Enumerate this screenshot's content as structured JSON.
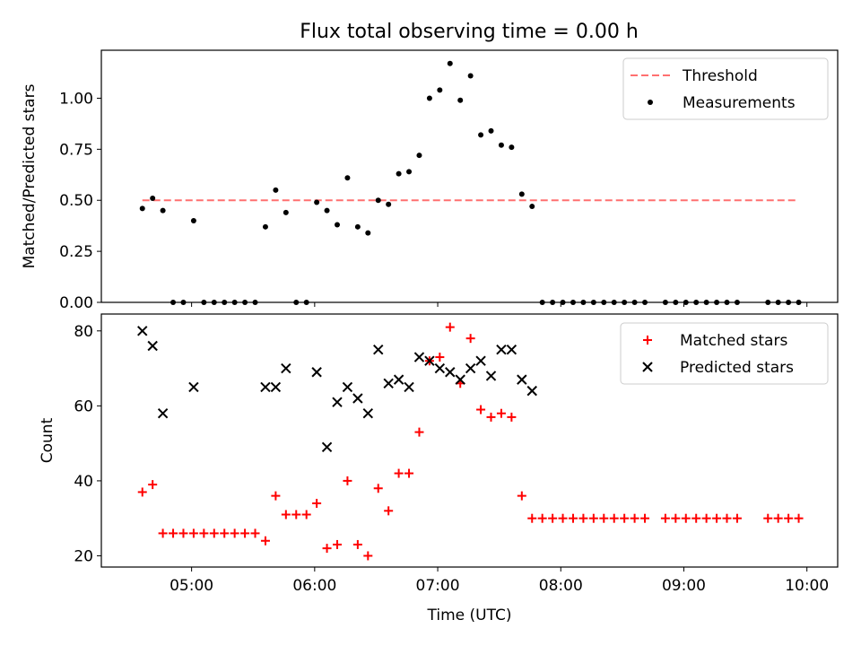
{
  "title": "Flux total observing time = 0.00 h",
  "chart_data": [
    {
      "type": "scatter",
      "ylabel": "Matched/Predicted stars",
      "ylim": [
        0,
        1.235
      ],
      "yticks": [
        "0.00",
        "0.25",
        "0.50",
        "0.75",
        "1.00"
      ],
      "xlim": [
        "04:16",
        "10:15"
      ],
      "grid": false,
      "legend_position": "top-right",
      "threshold": {
        "name": "Threshold",
        "y": 0.5,
        "x_start": "04:36",
        "x_end": "09:56",
        "color": "#ff7070"
      },
      "series": [
        {
          "name": "Measurements",
          "color": "#000000",
          "marker": "dot",
          "x": [
            "04:36",
            "04:41",
            "04:46",
            "04:51",
            "04:56",
            "05:01",
            "05:06",
            "05:11",
            "05:16",
            "05:21",
            "05:26",
            "05:31",
            "05:36",
            "05:41",
            "05:46",
            "05:51",
            "05:56",
            "06:01",
            "06:06",
            "06:11",
            "06:16",
            "06:21",
            "06:26",
            "06:31",
            "06:36",
            "06:41",
            "06:46",
            "06:51",
            "06:56",
            "07:01",
            "07:06",
            "07:11",
            "07:16",
            "07:21",
            "07:26",
            "07:31",
            "07:36",
            "07:41",
            "07:46",
            "07:51",
            "07:56",
            "08:01",
            "08:06",
            "08:11",
            "08:16",
            "08:21",
            "08:26",
            "08:31",
            "08:36",
            "08:41",
            "08:51",
            "08:56",
            "09:01",
            "09:06",
            "09:11",
            "09:16",
            "09:21",
            "09:26",
            "09:41",
            "09:46",
            "09:51",
            "09:56"
          ],
          "y": [
            0.46,
            0.51,
            0.45,
            0,
            0,
            0.4,
            0,
            0,
            0,
            0,
            0,
            0,
            0.37,
            0.55,
            0.44,
            0,
            0,
            0.49,
            0.45,
            0.38,
            0.61,
            0.37,
            0.34,
            0.5,
            0.48,
            0.63,
            0.64,
            0.72,
            1.0,
            1.04,
            1.17,
            0.99,
            1.11,
            0.82,
            0.84,
            0.77,
            0.76,
            0.53,
            0.47,
            0,
            0,
            0,
            0,
            0,
            0,
            0,
            0,
            0,
            0,
            0,
            0,
            0,
            0,
            0,
            0,
            0,
            0,
            0,
            0,
            0,
            0,
            0
          ]
        }
      ]
    },
    {
      "type": "scatter",
      "xlabel": "Time (UTC)",
      "ylabel": "Count",
      "ylim": [
        17,
        84.5
      ],
      "yticks": [
        "20",
        "40",
        "60",
        "80"
      ],
      "xlim": [
        "04:16",
        "10:15"
      ],
      "xticks": [
        "05:00",
        "06:00",
        "07:00",
        "08:00",
        "09:00",
        "10:00"
      ],
      "grid": false,
      "legend_position": "top-right",
      "series": [
        {
          "name": "Matched stars",
          "color": "#ff0000",
          "marker": "plus",
          "x": [
            "04:36",
            "04:41",
            "04:46",
            "04:51",
            "04:56",
            "05:01",
            "05:06",
            "05:11",
            "05:16",
            "05:21",
            "05:26",
            "05:31",
            "05:36",
            "05:41",
            "05:46",
            "05:51",
            "05:56",
            "06:01",
            "06:06",
            "06:11",
            "06:16",
            "06:21",
            "06:26",
            "06:31",
            "06:36",
            "06:41",
            "06:46",
            "06:51",
            "06:56",
            "07:01",
            "07:06",
            "07:11",
            "07:16",
            "07:21",
            "07:26",
            "07:31",
            "07:36",
            "07:41",
            "07:46",
            "07:51",
            "07:56",
            "08:01",
            "08:06",
            "08:11",
            "08:16",
            "08:21",
            "08:26",
            "08:31",
            "08:36",
            "08:41",
            "08:51",
            "08:56",
            "09:01",
            "09:06",
            "09:11",
            "09:16",
            "09:21",
            "09:26",
            "09:41",
            "09:46",
            "09:51",
            "09:56"
          ],
          "y": [
            37,
            39,
            26,
            26,
            26,
            26,
            26,
            26,
            26,
            26,
            26,
            26,
            24,
            36,
            31,
            31,
            31,
            34,
            22,
            23,
            40,
            23,
            20,
            38,
            32,
            42,
            42,
            53,
            72,
            73,
            81,
            66,
            78,
            59,
            57,
            58,
            57,
            36,
            30,
            30,
            30,
            30,
            30,
            30,
            30,
            30,
            30,
            30,
            30,
            30,
            30,
            30,
            30,
            30,
            30,
            30,
            30,
            30,
            30,
            30,
            30,
            30
          ]
        },
        {
          "name": "Predicted stars",
          "color": "#000000",
          "marker": "x",
          "x": [
            "04:36",
            "04:41",
            "04:46",
            "05:01",
            "05:36",
            "05:41",
            "05:46",
            "06:01",
            "06:06",
            "06:11",
            "06:16",
            "06:21",
            "06:26",
            "06:31",
            "06:36",
            "06:41",
            "06:46",
            "06:51",
            "06:56",
            "07:01",
            "07:06",
            "07:11",
            "07:16",
            "07:21",
            "07:26",
            "07:31",
            "07:36",
            "07:41",
            "07:46"
          ],
          "y": [
            80,
            76,
            58,
            65,
            65,
            65,
            70,
            69,
            49,
            61,
            65,
            62,
            58,
            75,
            66,
            67,
            65,
            73,
            72,
            70,
            69,
            67,
            70,
            72,
            68,
            75,
            75,
            67,
            64
          ]
        }
      ]
    }
  ]
}
